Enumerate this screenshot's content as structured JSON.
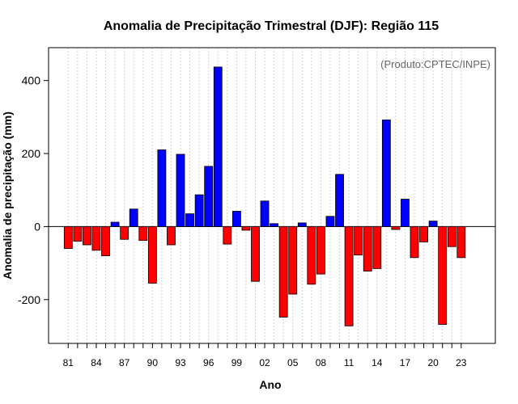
{
  "chart_data": {
    "type": "bar",
    "title": "Anomalia de Precipitação Trimestral (DJF): Região 115",
    "xlabel": "Ano",
    "ylabel": "Anomalia de precipitação (mm)",
    "credit": "(Produto:CPTEC/INPE)",
    "ylim": [
      -320,
      490
    ],
    "yticks": [
      -200,
      0,
      200,
      400
    ],
    "xtick_labels": [
      "81",
      "84",
      "87",
      "90",
      "93",
      "96",
      "99",
      "02",
      "05",
      "08",
      "11",
      "14",
      "17",
      "20",
      "23"
    ],
    "x": [
      1981,
      1982,
      1983,
      1984,
      1985,
      1986,
      1987,
      1988,
      1989,
      1990,
      1991,
      1992,
      1993,
      1994,
      1995,
      1996,
      1997,
      1998,
      1999,
      2000,
      2001,
      2002,
      2003,
      2004,
      2005,
      2006,
      2007,
      2008,
      2009,
      2010,
      2011,
      2012,
      2013,
      2014,
      2015,
      2016,
      2017,
      2018,
      2019,
      2020,
      2021,
      2022,
      2023
    ],
    "values": [
      -60,
      -40,
      -50,
      -65,
      -80,
      12,
      -35,
      48,
      -38,
      -155,
      210,
      -50,
      198,
      35,
      87,
      165,
      437,
      -48,
      42,
      -10,
      -150,
      70,
      8,
      -248,
      -185,
      10,
      -158,
      -130,
      28,
      143,
      -272,
      -78,
      -122,
      -115,
      292,
      -8,
      75,
      -85,
      -42,
      15,
      -268,
      -55,
      -85
    ],
    "positive_color": "#0000ff",
    "negative_color": "#ff0000"
  }
}
